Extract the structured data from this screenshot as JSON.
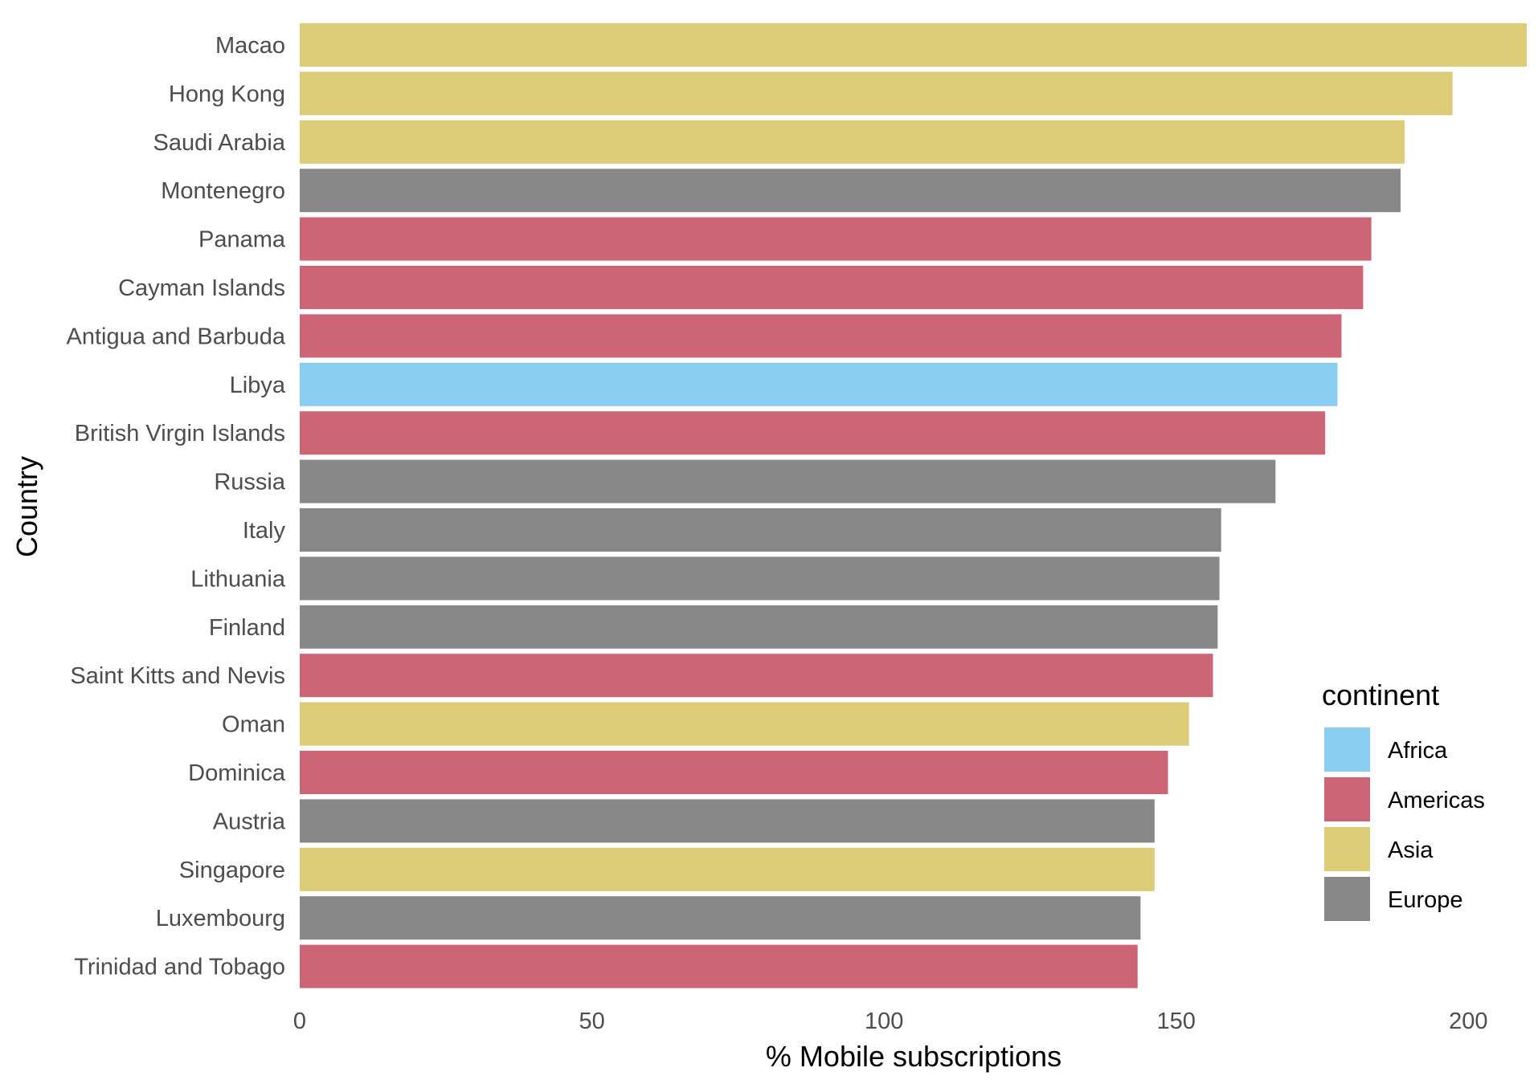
{
  "chart_data": {
    "type": "bar",
    "orientation": "horizontal",
    "xlabel": "% Mobile subscriptions",
    "ylabel": "Country",
    "xlim": [
      0,
      210
    ],
    "xticks": [
      0,
      50,
      100,
      150,
      200
    ],
    "grid": false,
    "legend": {
      "title": "continent",
      "placement": "right",
      "entries": [
        {
          "name": "Africa",
          "color": "#88CCEE"
        },
        {
          "name": "Americas",
          "color": "#CC6677"
        },
        {
          "name": "Asia",
          "color": "#DDCC77"
        },
        {
          "name": "Europe",
          "color": "#888888"
        }
      ]
    },
    "bars": [
      {
        "category": "Macao",
        "value": 210.0,
        "continent": "Asia"
      },
      {
        "category": "Hong Kong",
        "value": 197.3,
        "continent": "Asia"
      },
      {
        "category": "Saudi Arabia",
        "value": 189.1,
        "continent": "Asia"
      },
      {
        "category": "Montenegro",
        "value": 188.4,
        "continent": "Europe"
      },
      {
        "category": "Panama",
        "value": 183.4,
        "continent": "Americas"
      },
      {
        "category": "Cayman Islands",
        "value": 182.0,
        "continent": "Americas"
      },
      {
        "category": "Antigua and Barbuda",
        "value": 178.3,
        "continent": "Americas"
      },
      {
        "category": "Libya",
        "value": 177.6,
        "continent": "Africa"
      },
      {
        "category": "British Virgin Islands",
        "value": 175.5,
        "continent": "Americas"
      },
      {
        "category": "Russia",
        "value": 167.0,
        "continent": "Europe"
      },
      {
        "category": "Italy",
        "value": 157.7,
        "continent": "Europe"
      },
      {
        "category": "Lithuania",
        "value": 157.4,
        "continent": "Europe"
      },
      {
        "category": "Finland",
        "value": 157.1,
        "continent": "Europe"
      },
      {
        "category": "Saint Kitts and Nevis",
        "value": 156.3,
        "continent": "Americas"
      },
      {
        "category": "Oman",
        "value": 152.2,
        "continent": "Asia"
      },
      {
        "category": "Dominica",
        "value": 148.6,
        "continent": "Americas"
      },
      {
        "category": "Austria",
        "value": 146.3,
        "continent": "Europe"
      },
      {
        "category": "Singapore",
        "value": 146.3,
        "continent": "Asia"
      },
      {
        "category": "Luxembourg",
        "value": 143.9,
        "continent": "Europe"
      },
      {
        "category": "Trinidad and Tobago",
        "value": 143.4,
        "continent": "Americas"
      }
    ]
  }
}
